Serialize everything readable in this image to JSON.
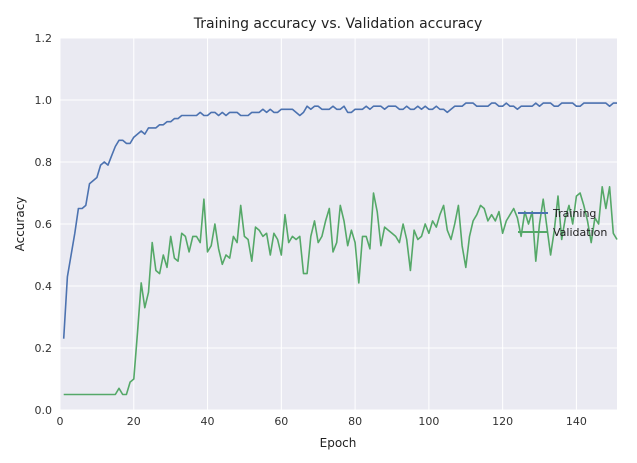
{
  "chart_data": {
    "type": "line",
    "title": "Training accuracy vs. Validation accuracy",
    "xlabel": "Epoch",
    "ylabel": "Accuracy",
    "xlim": [
      0,
      151
    ],
    "ylim": [
      0.0,
      1.2
    ],
    "xticks": [
      0,
      20,
      40,
      60,
      80,
      100,
      120,
      140
    ],
    "yticks": [
      "0.0",
      "0.2",
      "0.4",
      "0.6",
      "0.8",
      "1.0",
      "1.2"
    ],
    "grid": true,
    "legend_position": "right",
    "background_color": "#eaeaf2",
    "series": [
      {
        "name": "Training",
        "color": "#4c72b0",
        "values": [
          0.23,
          0.43,
          0.5,
          0.57,
          0.65,
          0.65,
          0.66,
          0.73,
          0.74,
          0.75,
          0.79,
          0.8,
          0.79,
          0.82,
          0.85,
          0.87,
          0.87,
          0.86,
          0.86,
          0.88,
          0.89,
          0.9,
          0.89,
          0.91,
          0.91,
          0.91,
          0.92,
          0.92,
          0.93,
          0.93,
          0.94,
          0.94,
          0.95,
          0.95,
          0.95,
          0.95,
          0.95,
          0.96,
          0.95,
          0.95,
          0.96,
          0.96,
          0.95,
          0.96,
          0.95,
          0.96,
          0.96,
          0.96,
          0.95,
          0.95,
          0.95,
          0.96,
          0.96,
          0.96,
          0.97,
          0.96,
          0.97,
          0.96,
          0.96,
          0.97,
          0.97,
          0.97,
          0.97,
          0.96,
          0.95,
          0.96,
          0.98,
          0.97,
          0.98,
          0.98,
          0.97,
          0.97,
          0.97,
          0.98,
          0.97,
          0.97,
          0.98,
          0.96,
          0.96,
          0.97,
          0.97,
          0.97,
          0.98,
          0.97,
          0.98,
          0.98,
          0.98,
          0.97,
          0.98,
          0.98,
          0.98,
          0.97,
          0.97,
          0.98,
          0.97,
          0.97,
          0.98,
          0.97,
          0.98,
          0.97,
          0.97,
          0.98,
          0.97,
          0.97,
          0.96,
          0.97,
          0.98,
          0.98,
          0.98,
          0.99,
          0.99,
          0.99,
          0.98,
          0.98,
          0.98,
          0.98,
          0.99,
          0.99,
          0.98,
          0.98,
          0.99,
          0.98,
          0.98,
          0.97,
          0.98,
          0.98,
          0.98,
          0.98,
          0.99,
          0.98,
          0.99,
          0.99,
          0.99,
          0.98,
          0.98,
          0.99,
          0.99,
          0.99,
          0.99,
          0.98,
          0.98,
          0.99,
          0.99,
          0.99,
          0.99,
          0.99,
          0.99,
          0.99,
          0.98,
          0.99,
          0.99
        ]
      },
      {
        "name": "Validation",
        "color": "#55a868",
        "values": [
          0.05,
          0.05,
          0.05,
          0.05,
          0.05,
          0.05,
          0.05,
          0.05,
          0.05,
          0.05,
          0.05,
          0.05,
          0.05,
          0.05,
          0.05,
          0.07,
          0.05,
          0.05,
          0.09,
          0.1,
          0.25,
          0.41,
          0.33,
          0.38,
          0.54,
          0.45,
          0.44,
          0.5,
          0.46,
          0.56,
          0.49,
          0.48,
          0.57,
          0.56,
          0.51,
          0.56,
          0.56,
          0.54,
          0.68,
          0.51,
          0.53,
          0.6,
          0.52,
          0.47,
          0.5,
          0.49,
          0.56,
          0.54,
          0.66,
          0.56,
          0.55,
          0.48,
          0.59,
          0.58,
          0.56,
          0.57,
          0.5,
          0.57,
          0.55,
          0.5,
          0.63,
          0.54,
          0.56,
          0.55,
          0.56,
          0.44,
          0.44,
          0.56,
          0.61,
          0.54,
          0.56,
          0.61,
          0.65,
          0.51,
          0.54,
          0.66,
          0.61,
          0.53,
          0.58,
          0.54,
          0.41,
          0.56,
          0.56,
          0.52,
          0.7,
          0.64,
          0.53,
          0.59,
          0.58,
          0.57,
          0.56,
          0.54,
          0.6,
          0.55,
          0.45,
          0.58,
          0.55,
          0.56,
          0.6,
          0.57,
          0.61,
          0.59,
          0.63,
          0.66,
          0.58,
          0.55,
          0.6,
          0.66,
          0.53,
          0.46,
          0.56,
          0.61,
          0.63,
          0.66,
          0.65,
          0.61,
          0.63,
          0.61,
          0.64,
          0.57,
          0.61,
          0.63,
          0.65,
          0.62,
          0.56,
          0.64,
          0.6,
          0.64,
          0.48,
          0.6,
          0.68,
          0.59,
          0.5,
          0.58,
          0.69,
          0.55,
          0.62,
          0.66,
          0.6,
          0.69,
          0.7,
          0.66,
          0.61,
          0.54,
          0.62,
          0.6,
          0.72,
          0.65,
          0.72,
          0.57,
          0.55
        ]
      }
    ]
  }
}
